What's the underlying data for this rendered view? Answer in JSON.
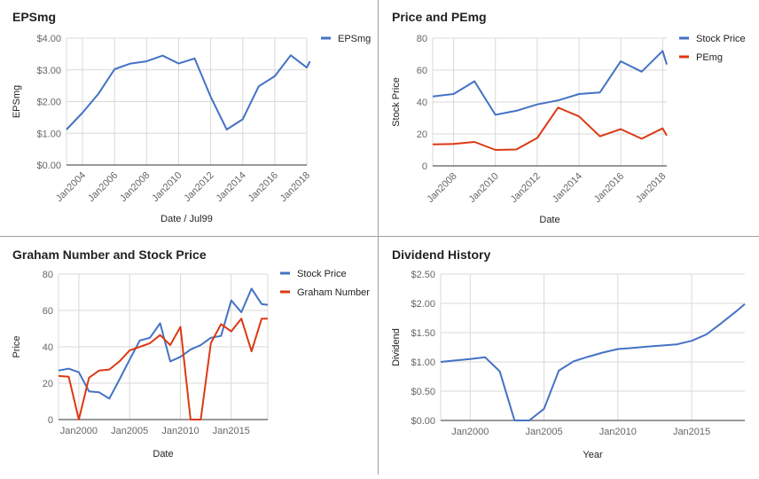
{
  "colors": {
    "blue": "#4472c4",
    "red": "#dc3912",
    "grid": "#d9d9d9",
    "baseline": "#333333",
    "tick_text": "#666666",
    "title_text": "#222222"
  },
  "chart_data": [
    {
      "type": "line",
      "title": "EPSmg",
      "xlabel": "Date / Jul99",
      "ylabel": "EPSmg",
      "y_format": "dollar2",
      "ylim": [
        0,
        4
      ],
      "yticks": [
        0,
        1,
        2,
        3,
        4
      ],
      "xlim": [
        2003,
        2018
      ],
      "xticks": [
        {
          "v": 2004,
          "label": "Jan2004"
        },
        {
          "v": 2006,
          "label": "Jan2006"
        },
        {
          "v": 2008,
          "label": "Jan2008"
        },
        {
          "v": 2010,
          "label": "Jan2010"
        },
        {
          "v": 2012,
          "label": "Jan2012"
        },
        {
          "v": 2014,
          "label": "Jan2014"
        },
        {
          "v": 2016,
          "label": "Jan2016"
        },
        {
          "v": 2018,
          "label": "Jan2018"
        }
      ],
      "x_rotated": true,
      "legend_position": "right",
      "series": [
        {
          "name": "EPSmg",
          "color": "#4472c4",
          "x": [
            2003,
            2004,
            2005,
            2006,
            2007,
            2008,
            2009,
            2010,
            2011,
            2012,
            2013,
            2014,
            2015,
            2016,
            2017,
            2018,
            2018.2
          ],
          "values": [
            1.12,
            1.65,
            2.25,
            3.02,
            3.2,
            3.27,
            3.45,
            3.2,
            3.36,
            2.15,
            1.12,
            1.44,
            2.48,
            2.8,
            3.46,
            3.07,
            3.27
          ]
        }
      ]
    },
    {
      "type": "line",
      "title": "Price and PEmg",
      "xlabel": "Date",
      "ylabel": "Stock Price",
      "y_format": "int",
      "ylim": [
        0,
        80
      ],
      "yticks": [
        0,
        20,
        40,
        60,
        80
      ],
      "xlim": [
        2007,
        2018.2
      ],
      "xticks": [
        {
          "v": 2008,
          "label": "Jan2008"
        },
        {
          "v": 2010,
          "label": "Jan2010"
        },
        {
          "v": 2012,
          "label": "Jan2012"
        },
        {
          "v": 2014,
          "label": "Jan2014"
        },
        {
          "v": 2016,
          "label": "Jan2016"
        },
        {
          "v": 2018,
          "label": "Jan2018"
        }
      ],
      "x_rotated": true,
      "legend_position": "right",
      "series": [
        {
          "name": "Stock Price",
          "color": "#4472c4",
          "x": [
            2007,
            2008,
            2009,
            2010,
            2011,
            2012,
            2013,
            2014,
            2015,
            2016,
            2017,
            2018,
            2018.2
          ],
          "values": [
            43.5,
            45,
            53,
            32,
            34.5,
            38.5,
            41,
            45,
            46,
            65.5,
            59,
            72,
            63.5
          ]
        },
        {
          "name": "PEmg",
          "color": "#dc3912",
          "x": [
            2007,
            2008,
            2009,
            2010,
            2011,
            2012,
            2013,
            2014,
            2015,
            2016,
            2017,
            2018,
            2018.2
          ],
          "values": [
            13.5,
            13.7,
            15,
            10,
            10.3,
            17.5,
            36.5,
            31,
            18.5,
            23,
            17,
            23.5,
            19
          ]
        }
      ]
    },
    {
      "type": "line",
      "title": "Graham Number and Stock Price",
      "xlabel": "Date",
      "ylabel": "Price",
      "y_format": "int",
      "ylim": [
        0,
        80
      ],
      "yticks": [
        0,
        20,
        40,
        60,
        80
      ],
      "xlim": [
        1998,
        2018.6
      ],
      "xticks": [
        {
          "v": 2000,
          "label": "Jan2000"
        },
        {
          "v": 2005,
          "label": "Jan2005"
        },
        {
          "v": 2010,
          "label": "Jan2010"
        },
        {
          "v": 2015,
          "label": "Jan2015"
        }
      ],
      "vgrid": [
        2000,
        2005,
        2010,
        2015,
        2018.6
      ],
      "x_rotated": false,
      "legend_position": "right",
      "series": [
        {
          "name": "Stock Price",
          "color": "#4472c4",
          "x": [
            1998,
            1999,
            2000,
            2001,
            2002,
            2003,
            2004,
            2005,
            2006,
            2007,
            2008,
            2009,
            2010,
            2011,
            2012,
            2013,
            2014,
            2015,
            2016,
            2017,
            2018,
            2018.6
          ],
          "values": [
            27,
            28,
            26,
            15.5,
            15,
            11.5,
            22,
            33,
            43.5,
            45,
            53,
            32,
            34.5,
            38.5,
            41,
            45,
            46,
            65.5,
            59,
            72,
            63.5,
            63
          ]
        },
        {
          "name": "Graham Number",
          "color": "#dc3912",
          "x": [
            1998,
            1999,
            2000,
            2001,
            2002,
            2003,
            2004,
            2005,
            2006,
            2007,
            2008,
            2009,
            2010,
            2011,
            2012,
            2013,
            2014,
            2015,
            2016,
            2017,
            2018,
            2018.6
          ],
          "values": [
            24,
            23.5,
            0,
            23,
            27,
            27.5,
            32,
            38,
            40,
            42,
            46.5,
            41,
            51,
            0,
            0,
            42,
            52.5,
            48.5,
            55.5,
            37.5,
            55.5,
            55.5
          ]
        }
      ]
    },
    {
      "type": "line",
      "title": "Dividend History",
      "xlabel": "Year",
      "ylabel": "Dividend",
      "y_format": "dollar2",
      "ylim": [
        0,
        2.5
      ],
      "yticks": [
        0,
        0.5,
        1,
        1.5,
        2,
        2.5
      ],
      "xlim": [
        1998,
        2018.6
      ],
      "xticks": [
        {
          "v": 2000,
          "label": "Jan2000"
        },
        {
          "v": 2005,
          "label": "Jan2005"
        },
        {
          "v": 2010,
          "label": "Jan2010"
        },
        {
          "v": 2015,
          "label": "Jan2015"
        }
      ],
      "vgrid": [
        2000,
        2005,
        2010,
        2015
      ],
      "x_rotated": false,
      "legend_position": "none",
      "series": [
        {
          "name": "",
          "color": "#4472c4",
          "x": [
            1998,
            2000,
            2001,
            2002,
            2003,
            2004,
            2005,
            2006,
            2007,
            2008,
            2009,
            2010,
            2011,
            2012,
            2013,
            2014,
            2015,
            2016,
            2017,
            2018,
            2018.6
          ],
          "values": [
            1.0,
            1.05,
            1.08,
            0.84,
            0.0,
            0.0,
            0.2,
            0.85,
            1.01,
            1.09,
            1.16,
            1.22,
            1.24,
            1.26,
            1.28,
            1.3,
            1.36,
            1.47,
            1.66,
            1.86,
            1.99
          ]
        }
      ]
    }
  ]
}
